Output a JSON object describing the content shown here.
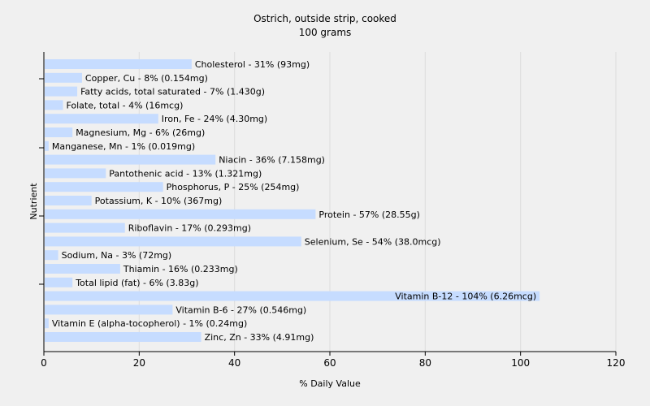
{
  "chart_data": {
    "type": "bar",
    "orientation": "horizontal",
    "title": "Ostrich, outside strip, cooked",
    "subtitle": "100 grams",
    "xlabel": "% Daily Value",
    "ylabel": "Nutrient",
    "xlim": [
      0,
      120
    ],
    "xticks": [
      0,
      20,
      40,
      60,
      80,
      100,
      120
    ],
    "grid": true,
    "bar_color": "#c6dcff",
    "background": "#f0f0f0",
    "categories": [
      "Cholesterol",
      "Copper, Cu",
      "Fatty acids, total saturated",
      "Folate, total",
      "Iron, Fe",
      "Magnesium, Mg",
      "Manganese, Mn",
      "Niacin",
      "Pantothenic acid",
      "Phosphorus, P",
      "Potassium, K",
      "Protein",
      "Riboflavin",
      "Selenium, Se",
      "Sodium, Na",
      "Thiamin",
      "Total lipid (fat)",
      "Vitamin B-12",
      "Vitamin B-6",
      "Vitamin E (alpha-tocopherol)",
      "Zinc, Zn"
    ],
    "values": [
      31,
      8,
      7,
      4,
      24,
      6,
      1,
      36,
      13,
      25,
      10,
      57,
      17,
      54,
      3,
      16,
      6,
      104,
      27,
      1,
      33
    ],
    "labels": [
      "Cholesterol - 31% (93mg)",
      "Copper, Cu - 8% (0.154mg)",
      "Fatty acids, total saturated - 7% (1.430g)",
      "Folate, total - 4% (16mcg)",
      "Iron, Fe - 24% (4.30mg)",
      "Magnesium, Mg - 6% (26mg)",
      "Manganese, Mn - 1% (0.019mg)",
      "Niacin - 36% (7.158mg)",
      "Pantothenic acid - 13% (1.321mg)",
      "Phosphorus, P - 25% (254mg)",
      "Potassium, K - 10% (367mg)",
      "Protein - 57% (28.55g)",
      "Riboflavin - 17% (0.293mg)",
      "Selenium, Se - 54% (38.0mcg)",
      "Sodium, Na - 3% (72mg)",
      "Thiamin - 16% (0.233mg)",
      "Total lipid (fat) - 6% (3.83g)",
      "Vitamin B-12 - 104% (6.26mcg)",
      "Vitamin B-6 - 27% (0.546mg)",
      "Vitamin E (alpha-tocopherol) - 1% (0.24mg)",
      "Zinc, Zn - 33% (4.91mg)"
    ]
  }
}
